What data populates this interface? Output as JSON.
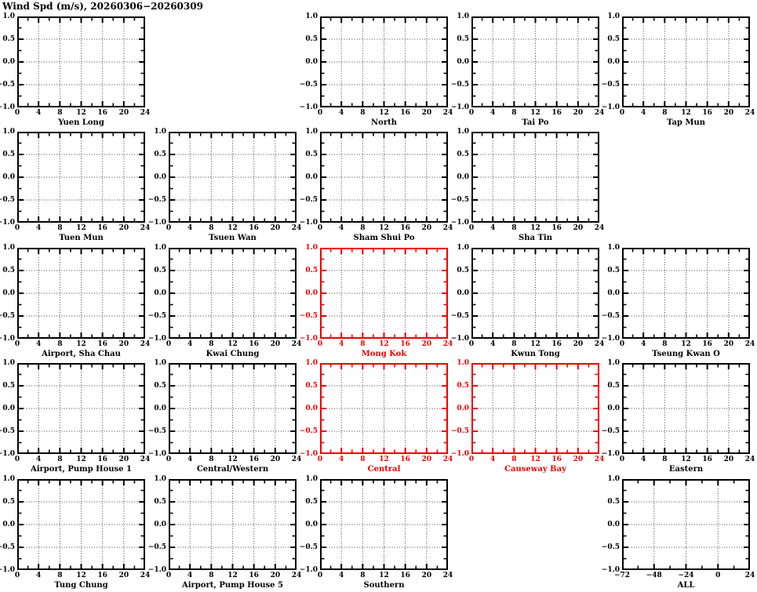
{
  "header": {
    "title": "Wind Spd (m/s), 20260306−20260309"
  },
  "colors": {
    "normal": "#000000",
    "highlight": "#f00000",
    "grid": "#3c3c3c",
    "background": "#ffffff"
  },
  "chart_data": {
    "type": "line",
    "title": "Wind Spd (m/s), 20260306−20260309",
    "ylabel": "Wind Spd (m/s)",
    "grid": true,
    "note": "Small-multiple grid of empty axes (no data series plotted). Panels Mong Kok, Central and Causeway Bay are highlighted in red. All panels share y range −1.0..1.0; all use hour-of-day x axis 0..24 except ALL which spans −72..24.",
    "y_axis": {
      "range": [
        -1.0,
        1.0
      ],
      "major_step": 0.5,
      "minor_step": 0.25,
      "tick_labels": [
        "1.0",
        "0.5",
        "0.0",
        "−0.5",
        "−1.0"
      ]
    },
    "x_axes": {
      "day": {
        "range": [
          0,
          24
        ],
        "major_step": 4,
        "minor_step": 2,
        "tick_labels": [
          "0",
          "4",
          "8",
          "12",
          "16",
          "20",
          "24"
        ]
      },
      "all": {
        "range": [
          -72,
          24
        ],
        "major_step": 24,
        "minor_step": 12,
        "tick_labels": [
          "−72",
          "−48",
          "−24",
          "0",
          "24"
        ]
      }
    },
    "panels": [
      {
        "title": "Yuen Long",
        "row": 1,
        "col": 1,
        "x_axis": "day",
        "color": "normal",
        "series": []
      },
      {
        "title": "North",
        "row": 1,
        "col": 3,
        "x_axis": "day",
        "color": "normal",
        "series": []
      },
      {
        "title": "Tai Po",
        "row": 1,
        "col": 4,
        "x_axis": "day",
        "color": "normal",
        "series": []
      },
      {
        "title": "Tap Mun",
        "row": 1,
        "col": 5,
        "x_axis": "day",
        "color": "normal",
        "series": []
      },
      {
        "title": "Tuen Mun",
        "row": 2,
        "col": 1,
        "x_axis": "day",
        "color": "normal",
        "series": []
      },
      {
        "title": "Tsuen Wan",
        "row": 2,
        "col": 2,
        "x_axis": "day",
        "color": "normal",
        "series": []
      },
      {
        "title": "Sham Shui Po",
        "row": 2,
        "col": 3,
        "x_axis": "day",
        "color": "normal",
        "series": []
      },
      {
        "title": "Sha Tin",
        "row": 2,
        "col": 4,
        "x_axis": "day",
        "color": "normal",
        "series": []
      },
      {
        "title": "Airport, Sha Chau",
        "row": 3,
        "col": 1,
        "x_axis": "day",
        "color": "normal",
        "series": []
      },
      {
        "title": "Kwai Chung",
        "row": 3,
        "col": 2,
        "x_axis": "day",
        "color": "normal",
        "series": []
      },
      {
        "title": "Mong Kok",
        "row": 3,
        "col": 3,
        "x_axis": "day",
        "color": "highlight",
        "series": []
      },
      {
        "title": "Kwun Tong",
        "row": 3,
        "col": 4,
        "x_axis": "day",
        "color": "normal",
        "series": []
      },
      {
        "title": "Tseung Kwan O",
        "row": 3,
        "col": 5,
        "x_axis": "day",
        "color": "normal",
        "series": []
      },
      {
        "title": "Airport, Pump House 1",
        "row": 4,
        "col": 1,
        "x_axis": "day",
        "color": "normal",
        "series": []
      },
      {
        "title": "Central/Western",
        "row": 4,
        "col": 2,
        "x_axis": "day",
        "color": "normal",
        "series": []
      },
      {
        "title": "Central",
        "row": 4,
        "col": 3,
        "x_axis": "day",
        "color": "highlight",
        "series": []
      },
      {
        "title": "Causeway Bay",
        "row": 4,
        "col": 4,
        "x_axis": "day",
        "color": "highlight",
        "series": []
      },
      {
        "title": "Eastern",
        "row": 4,
        "col": 5,
        "x_axis": "day",
        "color": "normal",
        "series": []
      },
      {
        "title": "Tung Chung",
        "row": 5,
        "col": 1,
        "x_axis": "day",
        "color": "normal",
        "series": []
      },
      {
        "title": "Airport, Pump House 5",
        "row": 5,
        "col": 2,
        "x_axis": "day",
        "color": "normal",
        "series": []
      },
      {
        "title": "Southern",
        "row": 5,
        "col": 3,
        "x_axis": "day",
        "color": "normal",
        "series": []
      },
      {
        "title": "ALL",
        "row": 5,
        "col": 5,
        "x_axis": "all",
        "color": "normal",
        "series": []
      }
    ]
  }
}
